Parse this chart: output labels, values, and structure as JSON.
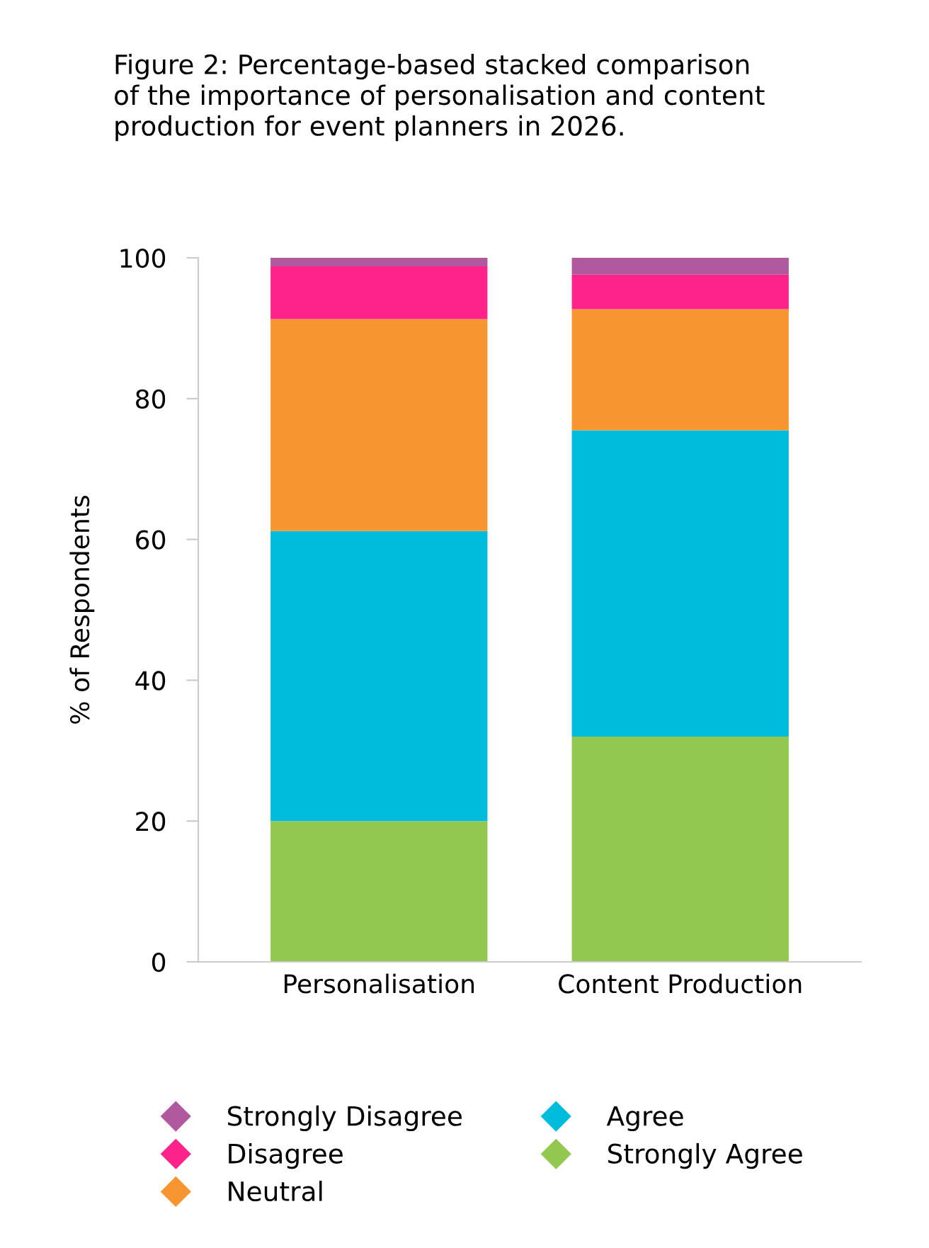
{
  "chart_data": {
    "type": "bar",
    "stacked": true,
    "title": "Figure 2: Percentage-based stacked comparison\nof the importance of personalisation and content\nproduction for event planners in 2026.",
    "ylabel": "% of Respondents",
    "categories": [
      "Personalisation",
      "Content Production"
    ],
    "series": [
      {
        "name": "Strongly Agree",
        "color": "#92c850",
        "values": [
          20,
          32
        ]
      },
      {
        "name": "Agree",
        "color": "#00bcdc",
        "values": [
          41.2,
          43.5
        ]
      },
      {
        "name": "Neutral",
        "color": "#f79530",
        "values": [
          30.1,
          17.2
        ]
      },
      {
        "name": "Disagree",
        "color": "#fe238b",
        "values": [
          7.5,
          4.9
        ]
      },
      {
        "name": "Strongly Disagree",
        "color": "#b0599e",
        "values": [
          1.2,
          2.4
        ]
      }
    ],
    "ylim": [
      0,
      100
    ],
    "yticks": [
      0,
      20,
      40,
      60,
      80,
      100
    ],
    "legend": "bottom",
    "grid": false
  }
}
